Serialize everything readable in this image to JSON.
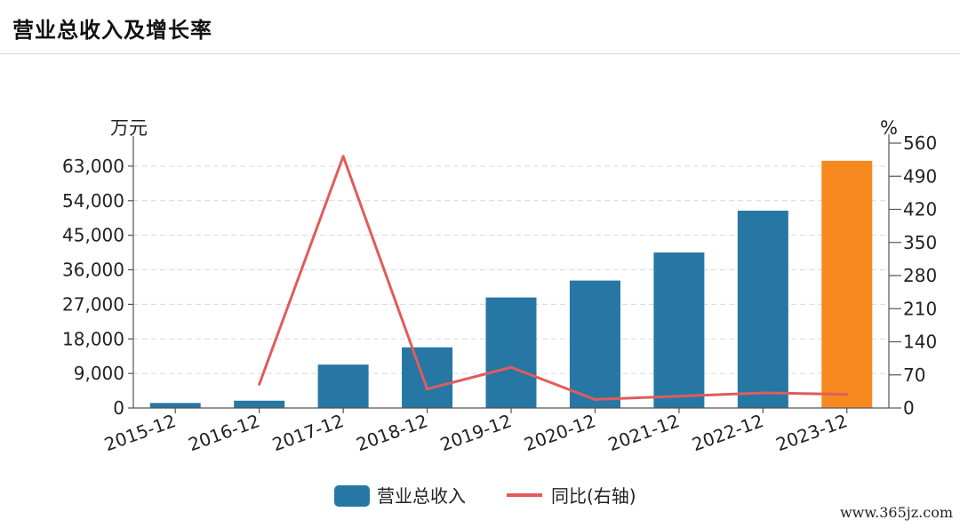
{
  "header": {
    "title": "营业总收入及增长率"
  },
  "watermark": "www.365jz.com",
  "chart_data": {
    "type": "bar",
    "categories": [
      "2015-12",
      "2016-12",
      "2017-12",
      "2018-12",
      "2019-12",
      "2020-12",
      "2021-12",
      "2022-12",
      "2023-12"
    ],
    "series": [
      {
        "name": "营业总收入",
        "type": "bar",
        "axis": "left",
        "values": [
          1300,
          1900,
          11300,
          15800,
          28800,
          33200,
          40500,
          51400,
          64400
        ],
        "color": "#2677a3",
        "highlight": {
          "index": 8,
          "color": "#f5891f"
        }
      },
      {
        "name": "同比(右轴)",
        "type": "line",
        "axis": "right",
        "values": [
          null,
          50,
          532,
          40,
          86,
          18,
          25,
          32,
          29
        ],
        "color": "#e05c5c"
      }
    ],
    "left_axis": {
      "unit": "万元",
      "ylim": [
        0,
        69000
      ],
      "ticks": [
        "0",
        "9,000",
        "18,000",
        "27,000",
        "36,000",
        "45,000",
        "54,000",
        "63,000"
      ],
      "tick_values": [
        0,
        9000,
        18000,
        27000,
        36000,
        45000,
        54000,
        63000
      ]
    },
    "right_axis": {
      "unit": "%",
      "ylim": [
        0,
        560
      ],
      "ticks": [
        "0",
        "70",
        "140",
        "210",
        "280",
        "350",
        "420",
        "490",
        "560"
      ],
      "tick_values": [
        0,
        70,
        140,
        210,
        280,
        350,
        420,
        490,
        560
      ]
    },
    "grid": true,
    "legend_position": "bottom-center"
  }
}
